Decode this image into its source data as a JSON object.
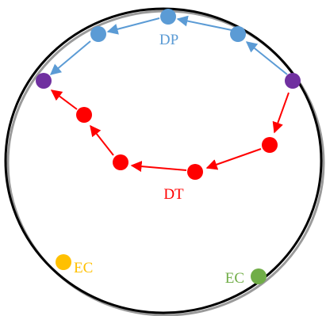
{
  "labels": {
    "dp": "DP",
    "dt": "DT",
    "ec_left": "EC",
    "ec_right": "EC"
  },
  "colors": {
    "outline": "#000000",
    "dp": "#5b9bd5",
    "dt": "#ff0000",
    "junction": "#7030a0",
    "ec_left": "#ffc000",
    "ec_right": "#70ad47"
  }
}
